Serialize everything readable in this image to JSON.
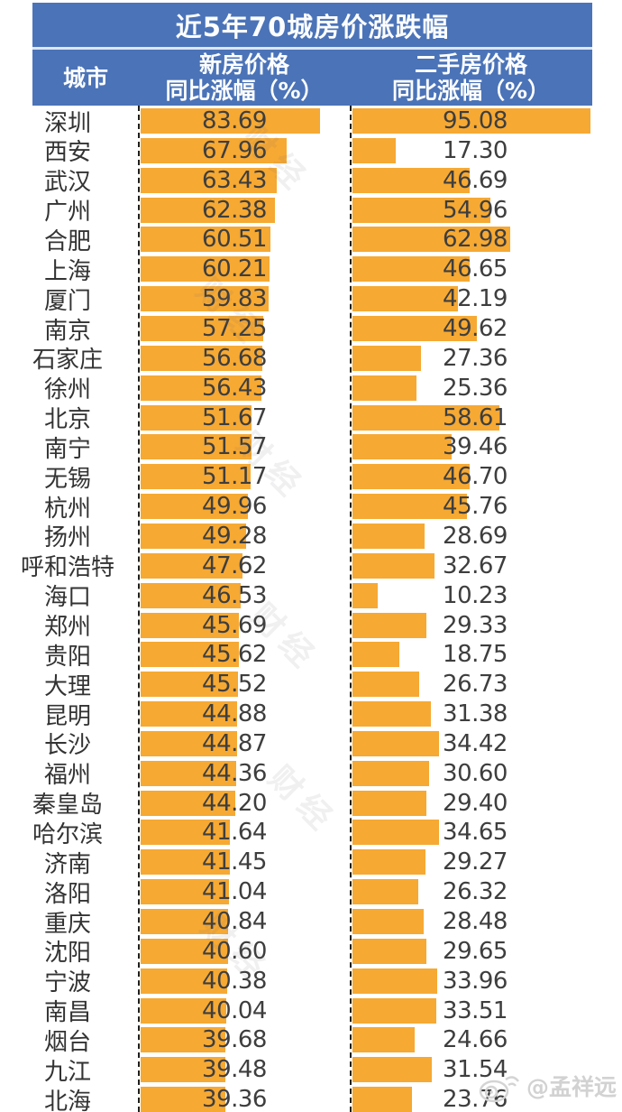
{
  "title": "近5年70城房价涨跌幅",
  "header": {
    "city": "城市",
    "col1_line1": "新房价格",
    "col1_line2": "同比涨幅（%）",
    "col2_line1": "二手房价格",
    "col2_line2": "同比涨幅（%）"
  },
  "watermark": {
    "diagonal_text": "财经",
    "credit": "@孟祥远"
  },
  "theme": {
    "header_blue": "#4b73b7",
    "bar_orange": "#f6a933",
    "value_text": "#3e3e3e",
    "watermark_gray": "#d2d2d2"
  },
  "chart_data": {
    "type": "bar",
    "orientation": "horizontal",
    "title": "近5年70城房价涨跌幅",
    "xlabel": "同比涨幅（%）",
    "ylabel": "城市",
    "xlim": [
      0,
      100
    ],
    "grid": false,
    "legend_position": "column-headers",
    "categories": [
      "深圳",
      "西安",
      "武汉",
      "广州",
      "合肥",
      "上海",
      "厦门",
      "南京",
      "石家庄",
      "徐州",
      "北京",
      "南宁",
      "无锡",
      "杭州",
      "扬州",
      "呼和浩特",
      "海口",
      "郑州",
      "贵阳",
      "大理",
      "昆明",
      "长沙",
      "福州",
      "秦皇岛",
      "哈尔滨",
      "济南",
      "洛阳",
      "重庆",
      "沈阳",
      "宁波",
      "南昌",
      "烟台",
      "九江",
      "北海"
    ],
    "series": [
      {
        "name": "新房价格同比涨幅（%）",
        "values": [
          83.69,
          67.96,
          63.43,
          62.38,
          60.51,
          60.21,
          59.83,
          57.25,
          56.68,
          56.43,
          51.67,
          51.57,
          51.17,
          49.96,
          49.28,
          47.62,
          46.53,
          45.69,
          45.62,
          45.52,
          44.88,
          44.87,
          44.36,
          44.2,
          41.64,
          41.45,
          41.04,
          40.84,
          40.6,
          40.38,
          40.04,
          39.68,
          39.48,
          39.36
        ]
      },
      {
        "name": "二手房价格同比涨幅（%）",
        "values": [
          95.08,
          17.3,
          46.69,
          54.96,
          62.98,
          46.65,
          42.19,
          49.62,
          27.36,
          25.36,
          58.61,
          39.46,
          46.7,
          45.76,
          28.69,
          32.67,
          10.23,
          29.33,
          18.75,
          26.73,
          31.38,
          34.42,
          30.6,
          29.4,
          34.65,
          29.27,
          26.32,
          28.48,
          29.65,
          33.96,
          33.51,
          24.66,
          31.54,
          23.76
        ]
      }
    ],
    "bar_color": "#f6a933"
  }
}
